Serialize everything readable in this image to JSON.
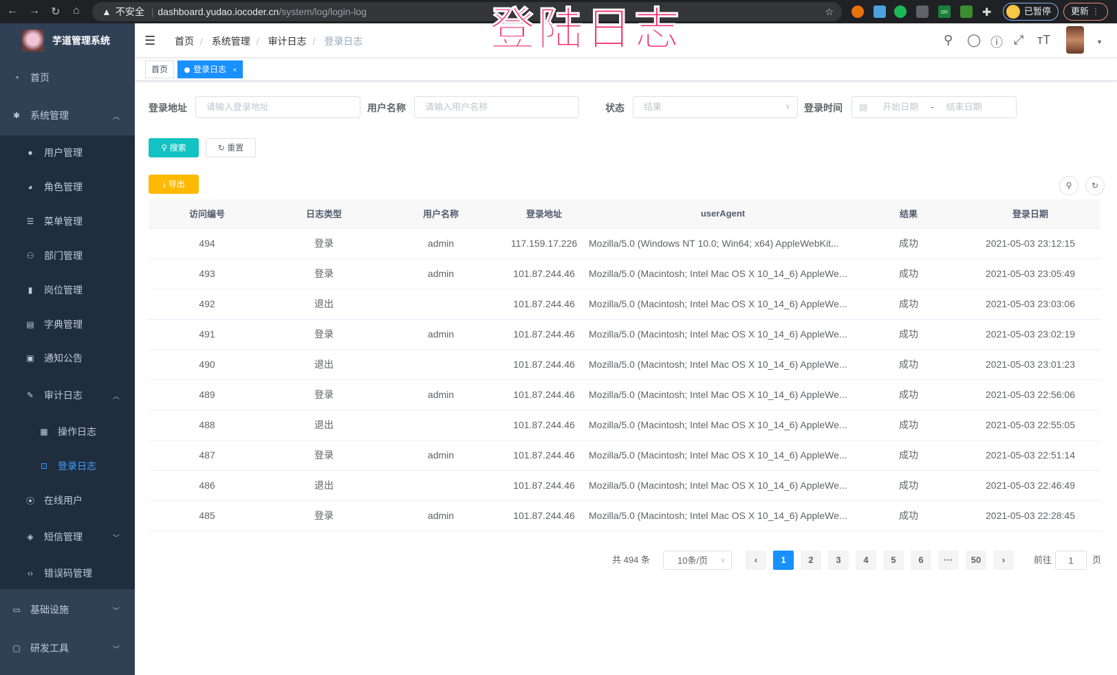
{
  "browser": {
    "security": "不安全",
    "url_host": "dashboard.yudao.iocoder.cn",
    "url_path": "/system/log/login-log",
    "paused": "已暂停",
    "update": "更新",
    "ext_badge": "on"
  },
  "stamp": "登陆日志",
  "app": {
    "title": "芋道管理系统"
  },
  "sidebar": {
    "items": [
      {
        "label": "首页",
        "icon": "dashboard-icon",
        "glyph": "◔",
        "level": 0
      },
      {
        "label": "系统管理",
        "icon": "gear-icon",
        "glyph": "✱",
        "level": 0,
        "arrow": "up"
      },
      {
        "label": "用户管理",
        "icon": "user-icon",
        "glyph": "●",
        "level": 1
      },
      {
        "label": "角色管理",
        "icon": "peoples-icon",
        "glyph": "◕",
        "level": 1
      },
      {
        "label": "菜单管理",
        "icon": "tree-table-icon",
        "glyph": "☰",
        "level": 1
      },
      {
        "label": "部门管理",
        "icon": "tree-icon",
        "glyph": "⚇",
        "level": 1
      },
      {
        "label": "岗位管理",
        "icon": "post-icon",
        "glyph": "▮",
        "level": 1
      },
      {
        "label": "字典管理",
        "icon": "dict-icon",
        "glyph": "▤",
        "level": 1
      },
      {
        "label": "通知公告",
        "icon": "message-icon",
        "glyph": "▣",
        "level": 1
      },
      {
        "label": "审计日志",
        "icon": "log-icon",
        "glyph": "✎",
        "level": 1,
        "arrow": "up"
      },
      {
        "label": "操作日志",
        "icon": "form-icon",
        "glyph": "▦",
        "level": 2
      },
      {
        "label": "登录日志",
        "icon": "logininfor-icon",
        "glyph": "⊡",
        "level": 2,
        "active": true
      },
      {
        "label": "在线用户",
        "icon": "online-icon",
        "glyph": "⦿",
        "level": 1
      },
      {
        "label": "短信管理",
        "icon": "shield-icon",
        "glyph": "◈",
        "level": 1,
        "arrow": "down"
      },
      {
        "label": "错误码管理",
        "icon": "code-icon",
        "glyph": "‹›",
        "level": 1
      },
      {
        "label": "基础设施",
        "icon": "monitor-icon",
        "glyph": "▭",
        "level": 0,
        "arrow": "down"
      },
      {
        "label": "研发工具",
        "icon": "tool-icon",
        "glyph": "▢",
        "level": 0,
        "arrow": "down"
      }
    ]
  },
  "breadcrumb": [
    "首页",
    "系统管理",
    "审计日志",
    "登录日志"
  ],
  "tags": {
    "home": "首页",
    "current": "登录日志",
    "close": "×"
  },
  "filters": {
    "address_label": "登录地址",
    "address_placeholder": "请输入登录地址",
    "username_label": "用户名称",
    "username_placeholder": "请输入用户名称",
    "status_label": "状态",
    "status_placeholder": "结果",
    "time_label": "登录时间",
    "start_placeholder": "开始日期",
    "range_sep": "-",
    "end_placeholder": "结束日期"
  },
  "buttons": {
    "search": "搜索",
    "reset": "重置",
    "export": "导出"
  },
  "colors": {
    "sidebar": "#304156",
    "submenu": "#1f2d3d",
    "primary": "#1890ff",
    "search": "#13c2c2",
    "export": "#ffba00"
  },
  "table": {
    "columns": [
      "访问编号",
      "日志类型",
      "用户名称",
      "登录地址",
      "userAgent",
      "结果",
      "登录日期"
    ],
    "rows": [
      [
        "494",
        "登录",
        "admin",
        "117.159.17.226",
        "Mozilla/5.0 (Windows NT 10.0; Win64; x64) AppleWebKit...",
        "成功",
        "2021-05-03 23:12:15"
      ],
      [
        "493",
        "登录",
        "admin",
        "101.87.244.46",
        "Mozilla/5.0 (Macintosh; Intel Mac OS X 10_14_6) AppleWe...",
        "成功",
        "2021-05-03 23:05:49"
      ],
      [
        "492",
        "退出",
        "",
        "101.87.244.46",
        "Mozilla/5.0 (Macintosh; Intel Mac OS X 10_14_6) AppleWe...",
        "成功",
        "2021-05-03 23:03:06"
      ],
      [
        "491",
        "登录",
        "admin",
        "101.87.244.46",
        "Mozilla/5.0 (Macintosh; Intel Mac OS X 10_14_6) AppleWe...",
        "成功",
        "2021-05-03 23:02:19"
      ],
      [
        "490",
        "退出",
        "",
        "101.87.244.46",
        "Mozilla/5.0 (Macintosh; Intel Mac OS X 10_14_6) AppleWe...",
        "成功",
        "2021-05-03 23:01:23"
      ],
      [
        "489",
        "登录",
        "admin",
        "101.87.244.46",
        "Mozilla/5.0 (Macintosh; Intel Mac OS X 10_14_6) AppleWe...",
        "成功",
        "2021-05-03 22:56:06"
      ],
      [
        "488",
        "退出",
        "",
        "101.87.244.46",
        "Mozilla/5.0 (Macintosh; Intel Mac OS X 10_14_6) AppleWe...",
        "成功",
        "2021-05-03 22:55:05"
      ],
      [
        "487",
        "登录",
        "admin",
        "101.87.244.46",
        "Mozilla/5.0 (Macintosh; Intel Mac OS X 10_14_6) AppleWe...",
        "成功",
        "2021-05-03 22:51:14"
      ],
      [
        "486",
        "退出",
        "",
        "101.87.244.46",
        "Mozilla/5.0 (Macintosh; Intel Mac OS X 10_14_6) AppleWe...",
        "成功",
        "2021-05-03 22:46:49"
      ],
      [
        "485",
        "登录",
        "admin",
        "101.87.244.46",
        "Mozilla/5.0 (Macintosh; Intel Mac OS X 10_14_6) AppleWe...",
        "成功",
        "2021-05-03 22:28:45"
      ]
    ]
  },
  "pagination": {
    "total": "共 494 条",
    "page_size": "10条/页",
    "pages": [
      "1",
      "2",
      "3",
      "4",
      "5",
      "6",
      "···",
      "50"
    ],
    "current": "1",
    "prev": "‹",
    "next": "›",
    "goto_label": "前往",
    "goto_value": "1",
    "goto_suffix": "页"
  }
}
